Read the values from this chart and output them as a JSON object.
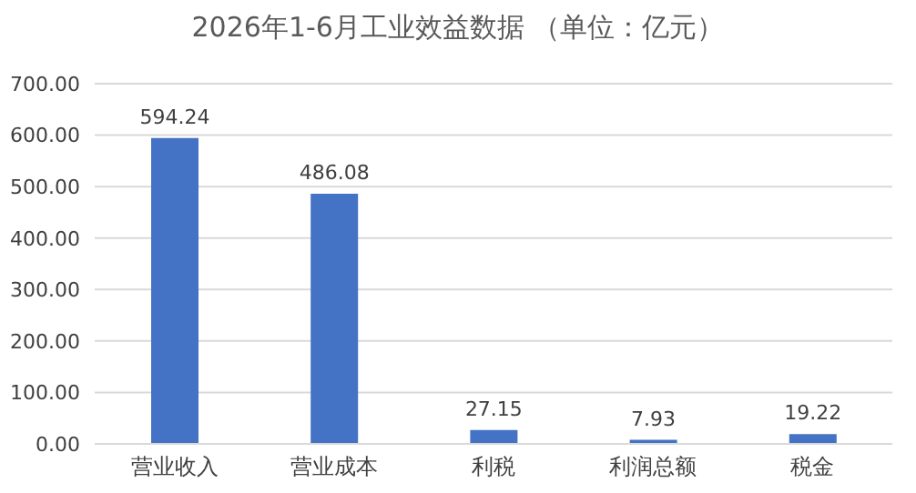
{
  "chart_data": {
    "type": "bar",
    "title": "2026年1-6月工业效益数据 （单位：亿元）",
    "categories": [
      "营业收入",
      "营业成本",
      "利税",
      "利润总额",
      "税金"
    ],
    "values": [
      594.24,
      486.08,
      27.15,
      7.93,
      19.22
    ],
    "color": "#4472c4",
    "ylim": [
      0,
      700
    ],
    "yticks": [
      {
        "value": 0,
        "label": "0.00"
      },
      {
        "value": 100,
        "label": "100.00"
      },
      {
        "value": 200,
        "label": "200.00"
      },
      {
        "value": 300,
        "label": "300.00"
      },
      {
        "value": 400,
        "label": "400.00"
      },
      {
        "value": 500,
        "label": "500.00"
      },
      {
        "value": 600,
        "label": "600.00"
      },
      {
        "value": 700,
        "label": "700.00"
      }
    ],
    "grid": "y",
    "data_labels": true
  }
}
